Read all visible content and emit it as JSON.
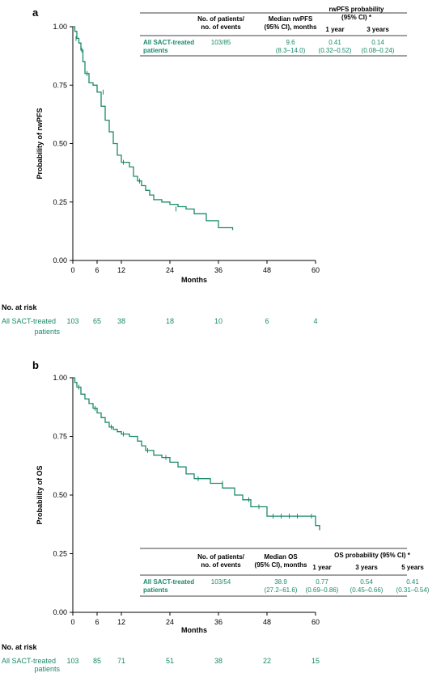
{
  "colors": {
    "curve": "#1b8a6b",
    "axis": "#000000"
  },
  "panels": [
    {
      "letter": "a",
      "ylabel": "Probability of rwPFS",
      "xlabel": "Months",
      "xticks": [
        "0",
        "6",
        "12",
        "24",
        "36",
        "48",
        "60"
      ],
      "yticks": [
        "0.00",
        "0.25",
        "0.50",
        "0.75",
        "1.00"
      ],
      "risk_title": "No. at risk",
      "risk_group": [
        "All SACT-treated",
        "patients"
      ],
      "risk_values": [
        "103",
        "65",
        "38",
        "18",
        "10",
        "6",
        "4"
      ],
      "table": {
        "col_patients": [
          "No. of patients/",
          "no. of events"
        ],
        "col_median": [
          "Median rwPFS",
          "(95% CI), months"
        ],
        "col_prob": [
          "rwPFS probability",
          "(95% CI) *"
        ],
        "sub_cols": [
          "1 year",
          "3 years"
        ],
        "row_label": [
          "All SACT-treated",
          "patients"
        ],
        "patients": "103/85",
        "median": [
          "9.6",
          "(8.3–14.0)"
        ],
        "probs": [
          [
            "0.41",
            "(0.32–0.52)"
          ],
          [
            "0.14",
            "(0.08–0.24)"
          ]
        ]
      }
    },
    {
      "letter": "b",
      "ylabel": "Probability of OS",
      "xlabel": "Months",
      "xticks": [
        "0",
        "6",
        "12",
        "24",
        "36",
        "48",
        "60"
      ],
      "yticks": [
        "0.00",
        "0.25",
        "0.50",
        "0.75",
        "1.00"
      ],
      "risk_title": "No. at risk",
      "risk_group": [
        "All SACT-treated",
        "patients"
      ],
      "risk_values": [
        "103",
        "85",
        "71",
        "51",
        "38",
        "22",
        "15"
      ],
      "table": {
        "col_patients": [
          "No. of patients/",
          "no. of events"
        ],
        "col_median": [
          "Median OS",
          "(95% CI), months"
        ],
        "col_prob": [
          "OS probability (95% CI) *"
        ],
        "sub_cols": [
          "1 year",
          "3 years",
          "5 years"
        ],
        "row_label": [
          "All SACT-treated",
          "patients"
        ],
        "patients": "103/54",
        "median": [
          "38.9",
          "(27.2–61.6)"
        ],
        "probs": [
          [
            "0.77",
            "(0.69–0.86)"
          ],
          [
            "0.54",
            "(0.45–0.66)"
          ],
          [
            "0.41",
            "(0.31–0.54)"
          ]
        ]
      }
    }
  ],
  "chart_data": [
    {
      "type": "line",
      "step": true,
      "xlabel": "Months",
      "ylabel": "Probability of rwPFS",
      "xlim": [
        0,
        60
      ],
      "ylim": [
        0,
        1
      ],
      "x_ticks": [
        0,
        6,
        12,
        24,
        36,
        48,
        60
      ],
      "y_ticks": [
        0,
        0.25,
        0.5,
        0.75,
        1.0
      ],
      "grid": false,
      "x": [
        0,
        0.5,
        1.0,
        1.5,
        2.0,
        2.5,
        3.0,
        4.0,
        5.0,
        6.0,
        7.0,
        8.0,
        9.0,
        10.0,
        11.0,
        12.0,
        14.0,
        15.0,
        16.0,
        17.0,
        18.0,
        19.0,
        20.0,
        22.0,
        24.0,
        26.0,
        28.0,
        30.0,
        33.0,
        36.0,
        39.5
      ],
      "y": [
        1.0,
        0.98,
        0.95,
        0.93,
        0.9,
        0.85,
        0.8,
        0.76,
        0.75,
        0.72,
        0.66,
        0.6,
        0.55,
        0.5,
        0.45,
        0.42,
        0.4,
        0.36,
        0.34,
        0.32,
        0.3,
        0.28,
        0.26,
        0.25,
        0.24,
        0.23,
        0.22,
        0.2,
        0.17,
        0.14,
        0.13
      ],
      "censor_x": [
        0.8,
        2.2,
        3.5,
        7.5,
        12.5,
        16.5,
        25.5
      ],
      "censor_y": [
        0.95,
        0.9,
        0.8,
        0.72,
        0.42,
        0.34,
        0.22
      ]
    },
    {
      "type": "line",
      "step": true,
      "xlabel": "Months",
      "ylabel": "Probability of OS",
      "xlim": [
        0,
        60
      ],
      "ylim": [
        0,
        1
      ],
      "x_ticks": [
        0,
        6,
        12,
        24,
        36,
        48,
        60
      ],
      "y_ticks": [
        0,
        0.25,
        0.5,
        0.75,
        1.0
      ],
      "grid": false,
      "x": [
        0,
        0.5,
        1.0,
        2.0,
        3.0,
        4.0,
        5.0,
        6.0,
        7.0,
        8.0,
        9.0,
        10.0,
        11.0,
        12.0,
        14.0,
        16.0,
        17.0,
        18.0,
        20.0,
        22.0,
        24.0,
        26.0,
        28.0,
        30.0,
        34.0,
        37.0,
        40.0,
        42.0,
        44.0,
        48.0,
        60.0,
        61.0
      ],
      "y": [
        1.0,
        0.98,
        0.96,
        0.93,
        0.91,
        0.89,
        0.87,
        0.85,
        0.83,
        0.81,
        0.79,
        0.78,
        0.77,
        0.76,
        0.75,
        0.73,
        0.71,
        0.69,
        0.67,
        0.66,
        0.64,
        0.62,
        0.59,
        0.57,
        0.55,
        0.53,
        0.5,
        0.48,
        0.45,
        0.41,
        0.37,
        0.35
      ],
      "censor_x": [
        1.5,
        5.5,
        9.5,
        12.5,
        18.5,
        23.0,
        31.0,
        37.0,
        43.5,
        46.0,
        49.5,
        51.5,
        53.5,
        55.5,
        59.0
      ],
      "censor_y": [
        0.96,
        0.87,
        0.79,
        0.76,
        0.69,
        0.66,
        0.57,
        0.55,
        0.48,
        0.45,
        0.41,
        0.41,
        0.41,
        0.41,
        0.41
      ]
    }
  ]
}
